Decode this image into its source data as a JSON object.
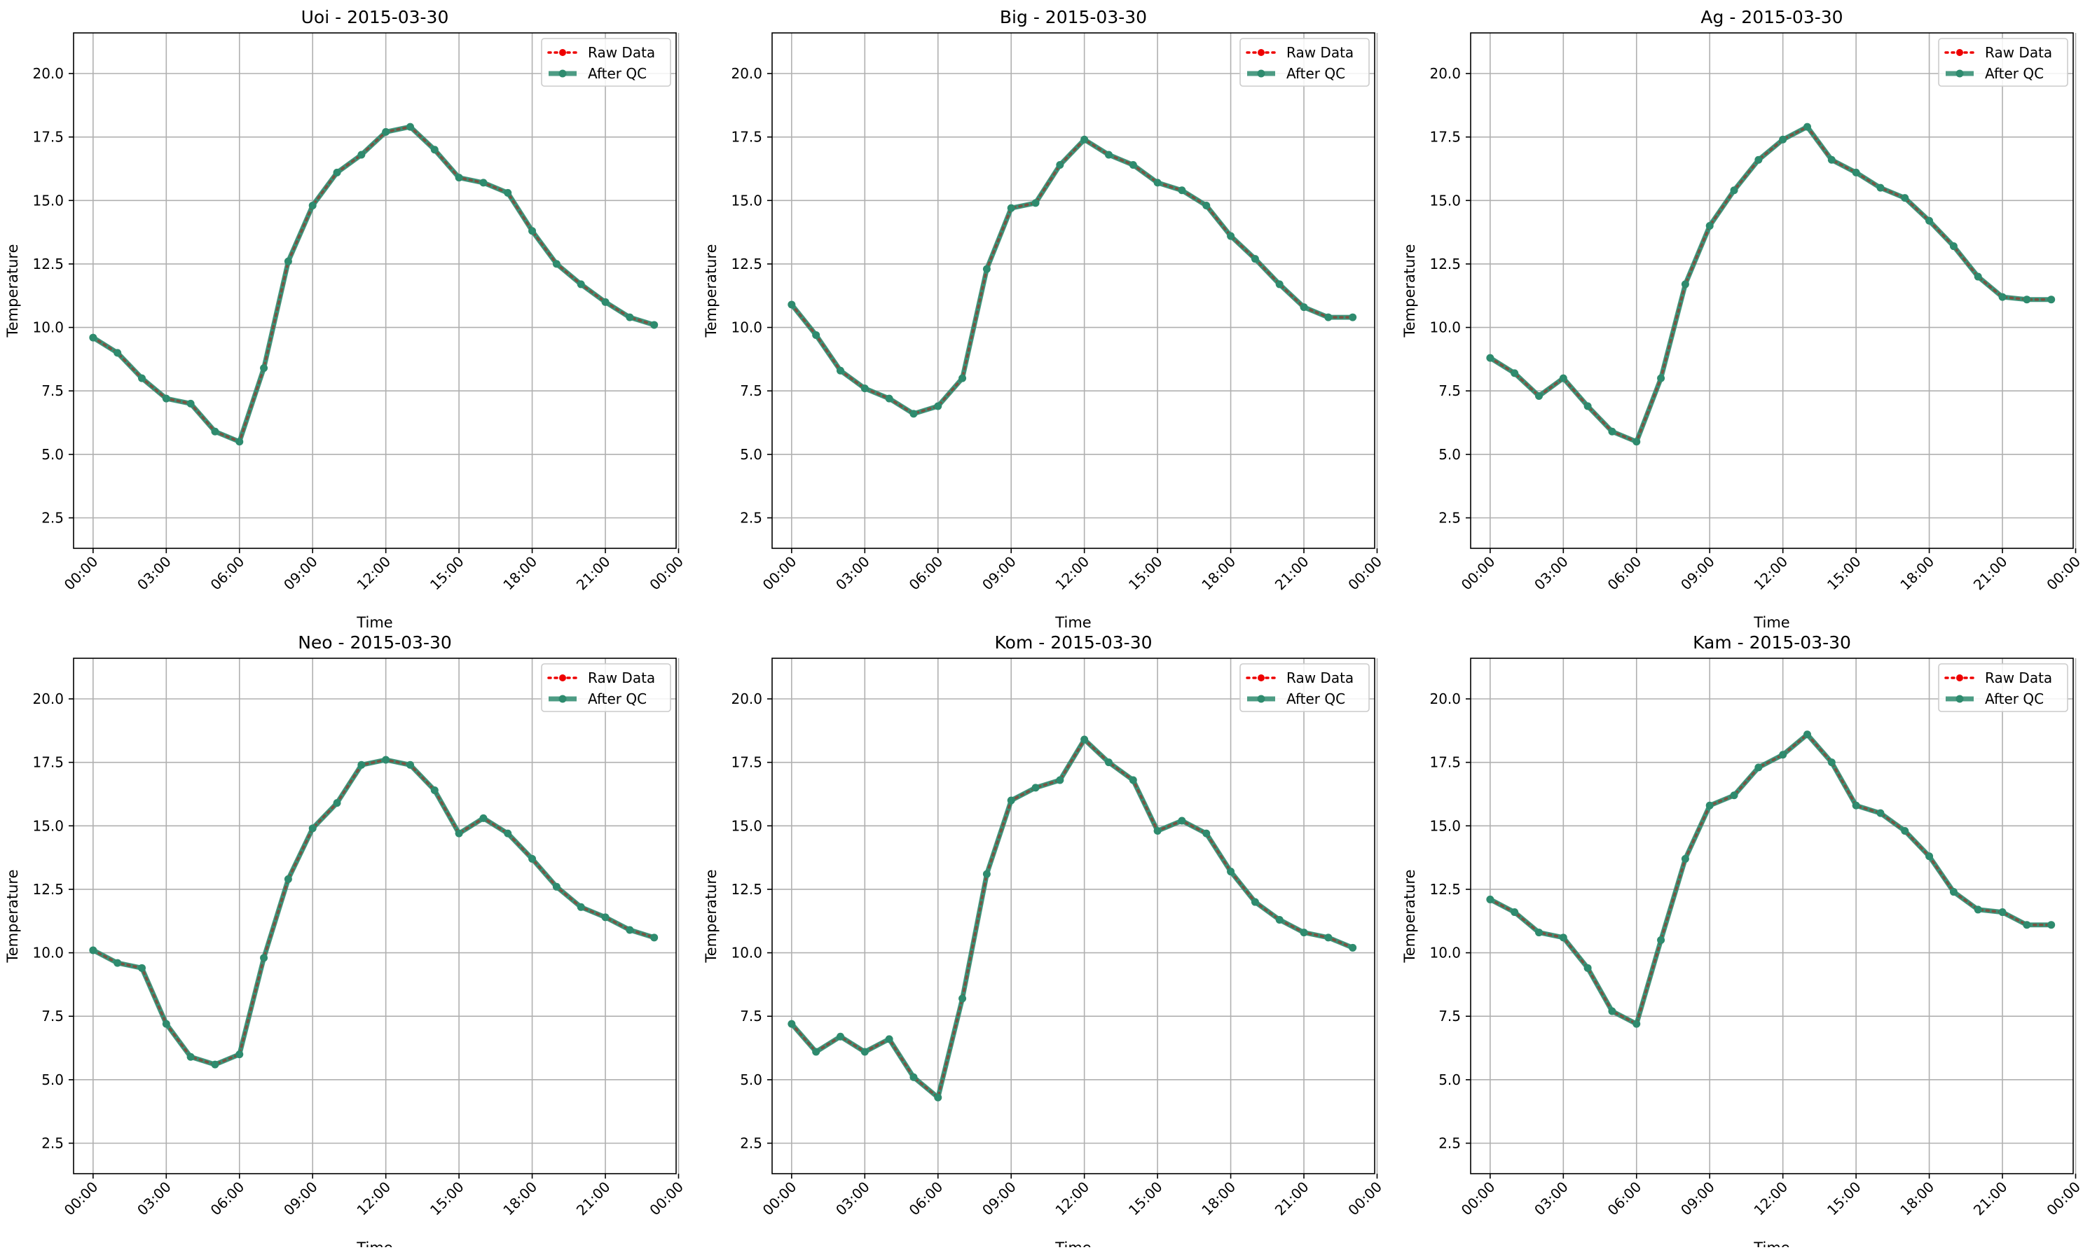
{
  "colors": {
    "raw": "#ee0000",
    "qc": "#2e8b6e",
    "grid": "#b0b0b0",
    "axis": "#000000",
    "legend_border": "#cccccc"
  },
  "legend": {
    "raw_label": "Raw Data",
    "qc_label": "After QC",
    "placement": "upper right"
  },
  "chart_data": [
    {
      "type": "line",
      "title": "Uoi - 2015-03-30",
      "xlabel": "Time",
      "ylabel": "Temperature",
      "ylim": [
        1.3,
        21.6
      ],
      "xlim": [
        -0.8,
        23.9
      ],
      "xticks": [
        0,
        3,
        6,
        9,
        12,
        15,
        18,
        21,
        24
      ],
      "xtick_labels": [
        "00:00",
        "03:00",
        "06:00",
        "09:00",
        "12:00",
        "15:00",
        "18:00",
        "21:00",
        "00:00"
      ],
      "yticks": [
        2.5,
        5.0,
        7.5,
        10.0,
        12.5,
        15.0,
        17.5,
        20.0
      ],
      "ytick_labels": [
        "2.5",
        "5.0",
        "7.5",
        "10.0",
        "12.5",
        "15.0",
        "17.5",
        "20.0"
      ],
      "grid": true,
      "x": [
        0,
        1,
        2,
        3,
        4,
        5,
        6,
        7,
        8,
        9,
        10,
        11,
        12,
        13,
        14,
        15,
        16,
        17,
        18,
        19,
        20,
        21,
        22,
        23
      ],
      "series": [
        {
          "name": "Raw Data",
          "values": [
            9.6,
            9.0,
            8.0,
            7.2,
            7.0,
            5.9,
            5.5,
            8.4,
            12.6,
            14.8,
            16.1,
            16.8,
            17.7,
            17.9,
            17.0,
            15.9,
            15.7,
            15.3,
            13.8,
            12.5,
            11.7,
            11.0,
            10.4,
            10.1
          ]
        },
        {
          "name": "After QC",
          "values": [
            9.6,
            9.0,
            8.0,
            7.2,
            7.0,
            5.9,
            5.5,
            8.4,
            12.6,
            14.8,
            16.1,
            16.8,
            17.7,
            17.9,
            17.0,
            15.9,
            15.7,
            15.3,
            13.8,
            12.5,
            11.7,
            11.0,
            10.4,
            10.1
          ]
        }
      ]
    },
    {
      "type": "line",
      "title": "Big - 2015-03-30",
      "xlabel": "Time",
      "ylabel": "Temperature",
      "ylim": [
        1.3,
        21.6
      ],
      "xlim": [
        -0.8,
        23.9
      ],
      "xticks": [
        0,
        3,
        6,
        9,
        12,
        15,
        18,
        21,
        24
      ],
      "xtick_labels": [
        "00:00",
        "03:00",
        "06:00",
        "09:00",
        "12:00",
        "15:00",
        "18:00",
        "21:00",
        "00:00"
      ],
      "yticks": [
        2.5,
        5.0,
        7.5,
        10.0,
        12.5,
        15.0,
        17.5,
        20.0
      ],
      "ytick_labels": [
        "2.5",
        "5.0",
        "7.5",
        "10.0",
        "12.5",
        "15.0",
        "17.5",
        "20.0"
      ],
      "grid": true,
      "x": [
        0,
        1,
        2,
        3,
        4,
        5,
        6,
        7,
        8,
        9,
        10,
        11,
        12,
        13,
        14,
        15,
        16,
        17,
        18,
        19,
        20,
        21,
        22,
        23
      ],
      "series": [
        {
          "name": "Raw Data",
          "values": [
            10.9,
            9.7,
            8.3,
            7.6,
            7.2,
            6.6,
            6.9,
            8.0,
            12.3,
            14.7,
            14.9,
            16.4,
            17.4,
            16.8,
            16.4,
            15.7,
            15.4,
            14.8,
            13.6,
            12.7,
            11.7,
            10.8,
            10.4,
            10.4
          ]
        },
        {
          "name": "After QC",
          "values": [
            10.9,
            9.7,
            8.3,
            7.6,
            7.2,
            6.6,
            6.9,
            8.0,
            12.3,
            14.7,
            14.9,
            16.4,
            17.4,
            16.8,
            16.4,
            15.7,
            15.4,
            14.8,
            13.6,
            12.7,
            11.7,
            10.8,
            10.4,
            10.4
          ]
        }
      ]
    },
    {
      "type": "line",
      "title": "Ag - 2015-03-30",
      "xlabel": "Time",
      "ylabel": "Temperature",
      "ylim": [
        1.3,
        21.6
      ],
      "xlim": [
        -0.8,
        23.9
      ],
      "xticks": [
        0,
        3,
        6,
        9,
        12,
        15,
        18,
        21,
        24
      ],
      "xtick_labels": [
        "00:00",
        "03:00",
        "06:00",
        "09:00",
        "12:00",
        "15:00",
        "18:00",
        "21:00",
        "00:00"
      ],
      "yticks": [
        2.5,
        5.0,
        7.5,
        10.0,
        12.5,
        15.0,
        17.5,
        20.0
      ],
      "ytick_labels": [
        "2.5",
        "5.0",
        "7.5",
        "10.0",
        "12.5",
        "15.0",
        "17.5",
        "20.0"
      ],
      "grid": true,
      "x": [
        0,
        1,
        2,
        3,
        4,
        5,
        6,
        7,
        8,
        9,
        10,
        11,
        12,
        13,
        14,
        15,
        16,
        17,
        18,
        19,
        20,
        21,
        22,
        23
      ],
      "series": [
        {
          "name": "Raw Data",
          "values": [
            8.8,
            8.2,
            7.3,
            8.0,
            6.9,
            5.9,
            5.5,
            8.0,
            11.7,
            14.0,
            15.4,
            16.6,
            17.4,
            17.9,
            16.6,
            16.1,
            15.5,
            15.1,
            14.2,
            13.2,
            12.0,
            11.2,
            11.1,
            11.1
          ]
        },
        {
          "name": "After QC",
          "values": [
            8.8,
            8.2,
            7.3,
            8.0,
            6.9,
            5.9,
            5.5,
            8.0,
            11.7,
            14.0,
            15.4,
            16.6,
            17.4,
            17.9,
            16.6,
            16.1,
            15.5,
            15.1,
            14.2,
            13.2,
            12.0,
            11.2,
            11.1,
            11.1
          ]
        }
      ]
    },
    {
      "type": "line",
      "title": "Neo - 2015-03-30",
      "xlabel": "Time",
      "ylabel": "Temperature",
      "ylim": [
        1.3,
        21.6
      ],
      "xlim": [
        -0.8,
        23.9
      ],
      "xticks": [
        0,
        3,
        6,
        9,
        12,
        15,
        18,
        21,
        24
      ],
      "xtick_labels": [
        "00:00",
        "03:00",
        "06:00",
        "09:00",
        "12:00",
        "15:00",
        "18:00",
        "21:00",
        "00:00"
      ],
      "yticks": [
        2.5,
        5.0,
        7.5,
        10.0,
        12.5,
        15.0,
        17.5,
        20.0
      ],
      "ytick_labels": [
        "2.5",
        "5.0",
        "7.5",
        "10.0",
        "12.5",
        "15.0",
        "17.5",
        "20.0"
      ],
      "grid": true,
      "x": [
        0,
        1,
        2,
        3,
        4,
        5,
        6,
        7,
        8,
        9,
        10,
        11,
        12,
        13,
        14,
        15,
        16,
        17,
        18,
        19,
        20,
        21,
        22,
        23
      ],
      "series": [
        {
          "name": "Raw Data",
          "values": [
            10.1,
            9.6,
            9.4,
            7.2,
            5.9,
            5.6,
            6.0,
            9.8,
            12.9,
            14.9,
            15.9,
            17.4,
            17.6,
            17.4,
            16.4,
            14.7,
            15.3,
            14.7,
            13.7,
            12.6,
            11.8,
            11.4,
            10.9,
            10.6
          ]
        },
        {
          "name": "After QC",
          "values": [
            10.1,
            9.6,
            9.4,
            7.2,
            5.9,
            5.6,
            6.0,
            9.8,
            12.9,
            14.9,
            15.9,
            17.4,
            17.6,
            17.4,
            16.4,
            14.7,
            15.3,
            14.7,
            13.7,
            12.6,
            11.8,
            11.4,
            10.9,
            10.6
          ]
        }
      ]
    },
    {
      "type": "line",
      "title": "Kom - 2015-03-30",
      "xlabel": "Time",
      "ylabel": "Temperature",
      "ylim": [
        1.3,
        21.6
      ],
      "xlim": [
        -0.8,
        23.9
      ],
      "xticks": [
        0,
        3,
        6,
        9,
        12,
        15,
        18,
        21,
        24
      ],
      "xtick_labels": [
        "00:00",
        "03:00",
        "06:00",
        "09:00",
        "12:00",
        "15:00",
        "18:00",
        "21:00",
        "00:00"
      ],
      "yticks": [
        2.5,
        5.0,
        7.5,
        10.0,
        12.5,
        15.0,
        17.5,
        20.0
      ],
      "ytick_labels": [
        "2.5",
        "5.0",
        "7.5",
        "10.0",
        "12.5",
        "15.0",
        "17.5",
        "20.0"
      ],
      "grid": true,
      "x": [
        0,
        1,
        2,
        3,
        4,
        5,
        6,
        7,
        8,
        9,
        10,
        11,
        12,
        13,
        14,
        15,
        16,
        17,
        18,
        19,
        20,
        21,
        22,
        23
      ],
      "series": [
        {
          "name": "Raw Data",
          "values": [
            7.2,
            6.1,
            6.7,
            6.1,
            6.6,
            5.1,
            4.3,
            8.2,
            13.1,
            16.0,
            16.5,
            16.8,
            18.4,
            17.5,
            16.8,
            14.8,
            15.2,
            14.7,
            13.2,
            12.0,
            11.3,
            10.8,
            10.6,
            10.2
          ]
        },
        {
          "name": "After QC",
          "values": [
            7.2,
            6.1,
            6.7,
            6.1,
            6.6,
            5.1,
            4.3,
            8.2,
            13.1,
            16.0,
            16.5,
            16.8,
            18.4,
            17.5,
            16.8,
            14.8,
            15.2,
            14.7,
            13.2,
            12.0,
            11.3,
            10.8,
            10.6,
            10.2
          ]
        }
      ]
    },
    {
      "type": "line",
      "title": "Kam - 2015-03-30",
      "xlabel": "Time",
      "ylabel": "Temperature",
      "ylim": [
        1.3,
        21.6
      ],
      "xlim": [
        -0.8,
        23.9
      ],
      "xticks": [
        0,
        3,
        6,
        9,
        12,
        15,
        18,
        21,
        24
      ],
      "xtick_labels": [
        "00:00",
        "03:00",
        "06:00",
        "09:00",
        "12:00",
        "15:00",
        "18:00",
        "21:00",
        "00:00"
      ],
      "yticks": [
        2.5,
        5.0,
        7.5,
        10.0,
        12.5,
        15.0,
        17.5,
        20.0
      ],
      "ytick_labels": [
        "2.5",
        "5.0",
        "7.5",
        "10.0",
        "12.5",
        "15.0",
        "17.5",
        "20.0"
      ],
      "grid": true,
      "x": [
        0,
        1,
        2,
        3,
        4,
        5,
        6,
        7,
        8,
        9,
        10,
        11,
        12,
        13,
        14,
        15,
        16,
        17,
        18,
        19,
        20,
        21,
        22,
        23
      ],
      "series": [
        {
          "name": "Raw Data",
          "values": [
            12.1,
            11.6,
            10.8,
            10.6,
            9.4,
            7.7,
            7.2,
            10.5,
            13.7,
            15.8,
            16.2,
            17.3,
            17.8,
            18.6,
            17.5,
            15.8,
            15.5,
            14.8,
            13.8,
            12.4,
            11.7,
            11.6,
            11.1,
            11.1
          ]
        },
        {
          "name": "After QC",
          "values": [
            12.1,
            11.6,
            10.8,
            10.6,
            9.4,
            7.7,
            7.2,
            10.5,
            13.7,
            15.8,
            16.2,
            17.3,
            17.8,
            18.6,
            17.5,
            15.8,
            15.5,
            14.8,
            13.8,
            12.4,
            11.7,
            11.6,
            11.1,
            11.1
          ]
        }
      ]
    }
  ]
}
